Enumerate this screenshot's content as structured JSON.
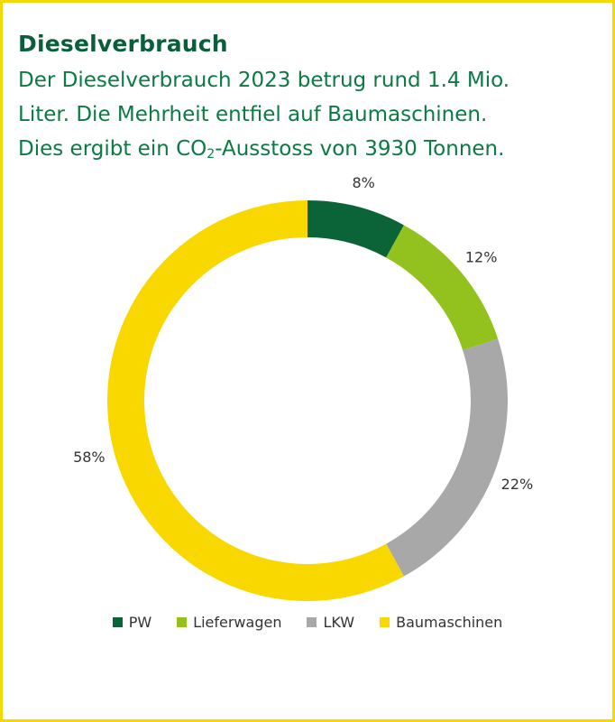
{
  "header": {
    "title": "Dieselverbrauch",
    "line1": "Der Dieselverbrauch 2023 betrug rund 1.4 Mio.",
    "line2": "Liter. Die Mehrheit entfiel auf Baumaschinen.",
    "line3_pre": "Dies ergibt ein CO",
    "line3_sub": "2",
    "line3_post": "-Ausstoss von 3930 Tonnen."
  },
  "colors": {
    "frame": "#f5d800",
    "title": "#0b5e3a",
    "text": "#0b7a43"
  },
  "chart_data": {
    "type": "pie",
    "variant": "donut",
    "categories": [
      "PW",
      "Lieferwagen",
      "LKW",
      "Baumaschinen"
    ],
    "values": [
      8,
      12,
      22,
      58
    ],
    "data_labels": [
      "8%",
      "12%",
      "22%",
      "58%"
    ],
    "colors": [
      "#0b6338",
      "#93c11e",
      "#a8a8a8",
      "#f9d800"
    ],
    "legend_position": "bottom"
  }
}
